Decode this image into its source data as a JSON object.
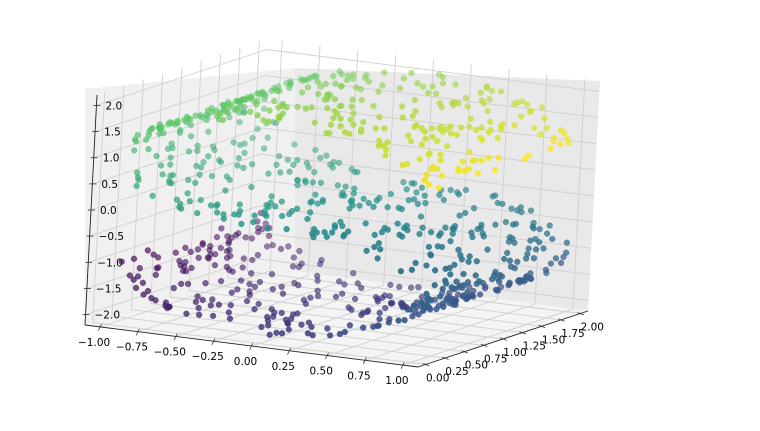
{
  "chart_data": {
    "type": "scatter3d",
    "title": "",
    "xlabel": "",
    "ylabel": "",
    "zlabel": "",
    "x_ticks": [
      "−1.00",
      "−0.75",
      "−0.50",
      "−0.25",
      "0.00",
      "0.25",
      "0.50",
      "0.75",
      "1.00"
    ],
    "y_ticks": [
      "0.00",
      "0.25",
      "0.50",
      "0.75",
      "1.00",
      "1.25",
      "1.50",
      "1.75",
      "2.00"
    ],
    "z_ticks": [
      "−2.0",
      "−1.5",
      "−1.0",
      "−0.5",
      "0.0",
      "0.5",
      "1.0",
      "1.5",
      "2.0"
    ],
    "xlim": [
      -1.1,
      1.1
    ],
    "ylim": [
      -0.1,
      2.1
    ],
    "zlim": [
      -2.2,
      2.2
    ],
    "colormap": "viridis",
    "colors": [
      "#440154",
      "#3b528b",
      "#21918c",
      "#5ec962",
      "#fde725"
    ],
    "shape": "S-curve surface, t in [-4.71, 4.71]: x = sin(t), z = sign(t)(cos(t) - 1), y uniform in [0, 2]",
    "n_points": 900,
    "grid": true
  }
}
